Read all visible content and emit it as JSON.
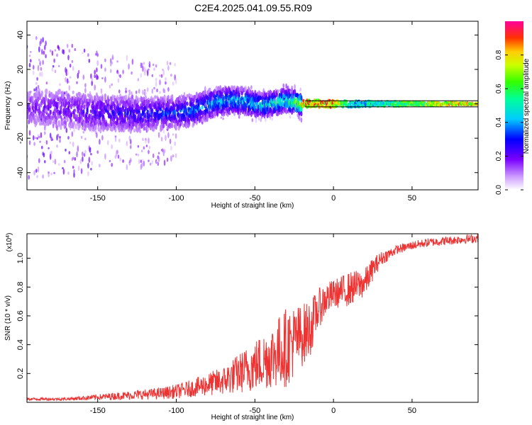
{
  "figure_title": "C2E4.2025.041.09.55.R09",
  "chart_data": [
    {
      "type": "heatmap",
      "title": "C2E4.2025.041.09.55.R09",
      "xlabel": "Height of straight line (km)",
      "ylabel": "Frequency (Hz)",
      "xlim": [
        -195,
        92
      ],
      "ylim": [
        -50,
        48
      ],
      "xticks": [
        -150,
        -100,
        -50,
        0,
        50
      ],
      "xtick_labels": [
        "-150",
        "-100",
        "-50",
        "0",
        "50"
      ],
      "yticks": [
        -40,
        -20,
        0,
        20,
        40
      ],
      "ytick_labels": [
        "-40",
        "-20",
        "0",
        "20",
        "40"
      ],
      "colorbar": {
        "label": "Normalized spectral amplitude",
        "range": [
          0,
          1
        ],
        "ticks": [
          0.0,
          0.2,
          0.4,
          0.6,
          0.8
        ],
        "tick_labels": [
          "0.0",
          "0.2",
          "0.4",
          "0.6",
          "0.8"
        ]
      },
      "ridge": {
        "x": [
          -195,
          -175,
          -150,
          -125,
          -100,
          -90,
          -75,
          -60,
          -45,
          -30,
          -20,
          -10,
          0,
          10,
          30,
          60,
          92
        ],
        "freq_hz": [
          -2,
          -3,
          -5,
          -6,
          -5,
          -4,
          1,
          2,
          -1,
          2,
          0,
          0,
          0,
          0,
          0,
          0,
          0
        ],
        "peak_amplitude": [
          0.2,
          0.25,
          0.3,
          0.35,
          0.4,
          0.45,
          0.5,
          0.55,
          0.55,
          0.65,
          0.95,
          0.95,
          1.0,
          0.55,
          0.6,
          0.85,
          0.95
        ]
      }
    },
    {
      "type": "line",
      "xlabel": "Height of straight line (km)",
      "ylabel": "SNR (10 * v/v)",
      "scale_label": "(x10",
      "scale_exponent": "4",
      "scale_suffix": ")",
      "xlim": [
        -195,
        92
      ],
      "ylim": [
        0,
        1.17
      ],
      "xticks": [
        -150,
        -100,
        -50,
        0,
        50
      ],
      "xtick_labels": [
        "-150",
        "-100",
        "-50",
        "0",
        "50"
      ],
      "yticks": [
        0.2,
        0.4,
        0.6,
        0.8,
        1.0
      ],
      "ytick_labels": [
        "0.2",
        "0.4",
        "0.6",
        "0.8",
        "1.0"
      ],
      "color": "#ee3333",
      "series": [
        {
          "name": "SNR",
          "x": [
            -195,
            -170,
            -150,
            -130,
            -110,
            -100,
            -90,
            -80,
            -70,
            -60,
            -50,
            -40,
            -30,
            -20,
            -15,
            -10,
            -5,
            0,
            10,
            20,
            25,
            30,
            40,
            50,
            60,
            70,
            80,
            92
          ],
          "y": [
            0.02,
            0.02,
            0.03,
            0.04,
            0.05,
            0.06,
            0.08,
            0.1,
            0.12,
            0.16,
            0.2,
            0.25,
            0.3,
            0.4,
            0.45,
            0.6,
            0.68,
            0.72,
            0.75,
            0.8,
            0.9,
            0.98,
            1.05,
            1.08,
            1.1,
            1.11,
            1.12,
            1.13
          ],
          "spread": [
            0.01,
            0.01,
            0.02,
            0.03,
            0.04,
            0.05,
            0.06,
            0.08,
            0.1,
            0.14,
            0.18,
            0.22,
            0.28,
            0.22,
            0.2,
            0.14,
            0.12,
            0.1,
            0.12,
            0.1,
            0.08,
            0.05,
            0.03,
            0.03,
            0.03,
            0.03,
            0.03,
            0.03
          ]
        }
      ]
    }
  ]
}
